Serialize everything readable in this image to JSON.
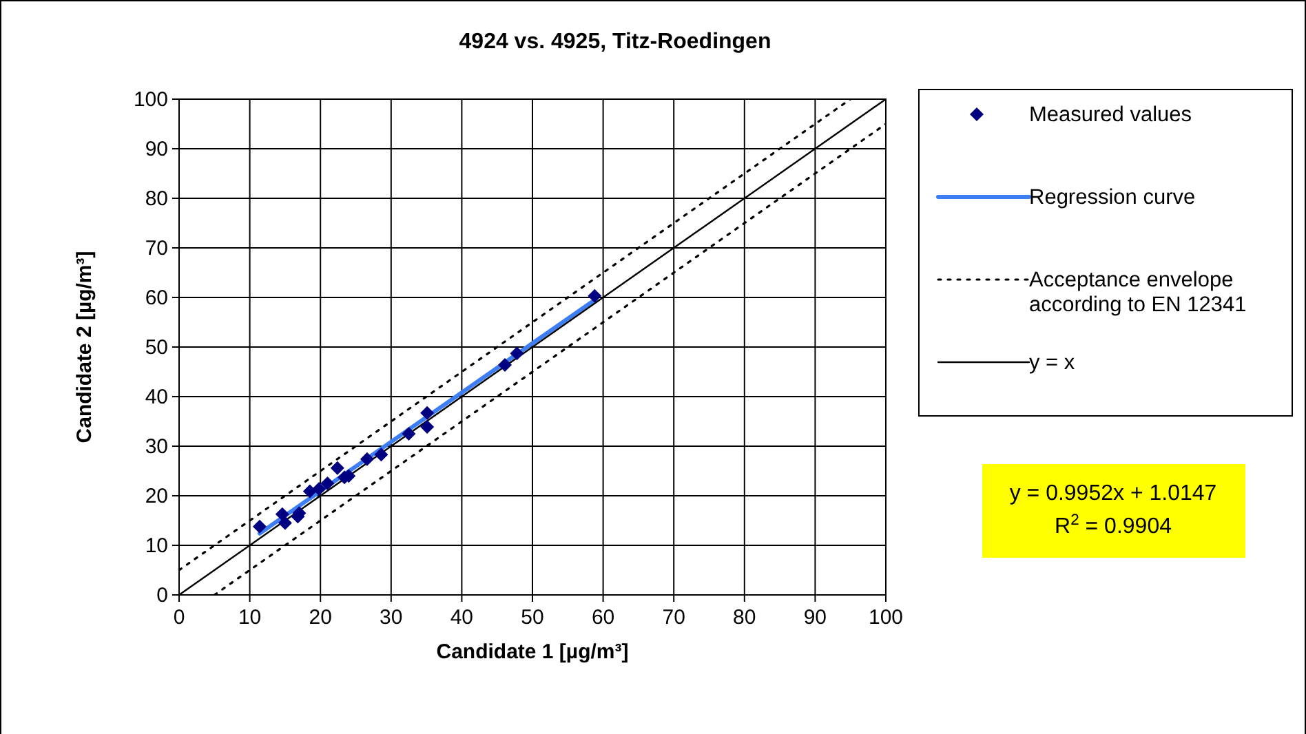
{
  "chart_data": {
    "type": "scatter",
    "title": "4924 vs. 4925, Titz-Roedingen",
    "xlabel": "Candidate 1 [µg/m³]",
    "ylabel": "Candidate 2 [µg/m³]",
    "xlim": [
      0,
      100
    ],
    "ylim": [
      0,
      100
    ],
    "xticks": [
      0,
      10,
      20,
      30,
      40,
      50,
      60,
      70,
      80,
      90,
      100
    ],
    "yticks": [
      0,
      10,
      20,
      30,
      40,
      50,
      60,
      70,
      80,
      90,
      100
    ],
    "grid": true,
    "legend": "right",
    "series": [
      {
        "name": "Measured values",
        "marker": "diamond",
        "color": "#000080",
        "x": [
          11.4,
          14.6,
          15,
          16.8,
          17,
          18.5,
          19.8,
          21,
          22.4,
          23.4,
          24,
          26.6,
          28.6,
          32.5,
          35.1,
          35.1,
          46.1,
          47.8,
          58.8
        ],
        "values": [
          13.8,
          16.3,
          14.5,
          15.8,
          16.5,
          20.9,
          21.4,
          22.5,
          25.6,
          23.7,
          24,
          27.4,
          28.3,
          32.5,
          36.7,
          33.9,
          46.4,
          48.7,
          60.3
        ]
      },
      {
        "name": "Regression curve",
        "type": "line",
        "marker": "none",
        "line_style": "solid",
        "color": "#3d7ef5",
        "x": [
          11.4,
          58.8
        ],
        "values": [
          12.4,
          59.5
        ]
      },
      {
        "name": "Acceptance envelope according to EN 12341",
        "type": "line",
        "marker": "none",
        "line_style": "dotted",
        "color": "#000000",
        "x": [
          0,
          95
        ],
        "values": [
          5,
          100
        ]
      },
      {
        "type": "line",
        "marker": "none",
        "line_style": "dotted",
        "color": "#000000",
        "x": [
          5,
          100
        ],
        "values": [
          0,
          95
        ]
      },
      {
        "name": "y = x",
        "type": "line",
        "marker": "none",
        "line_style": "solid",
        "color": "#000000",
        "x": [
          0,
          100
        ],
        "values": [
          0,
          100
        ]
      }
    ],
    "annotations": [
      "y = 0.9952x + 1.0147",
      "R$^{2}$ = 0.9904"
    ]
  }
}
